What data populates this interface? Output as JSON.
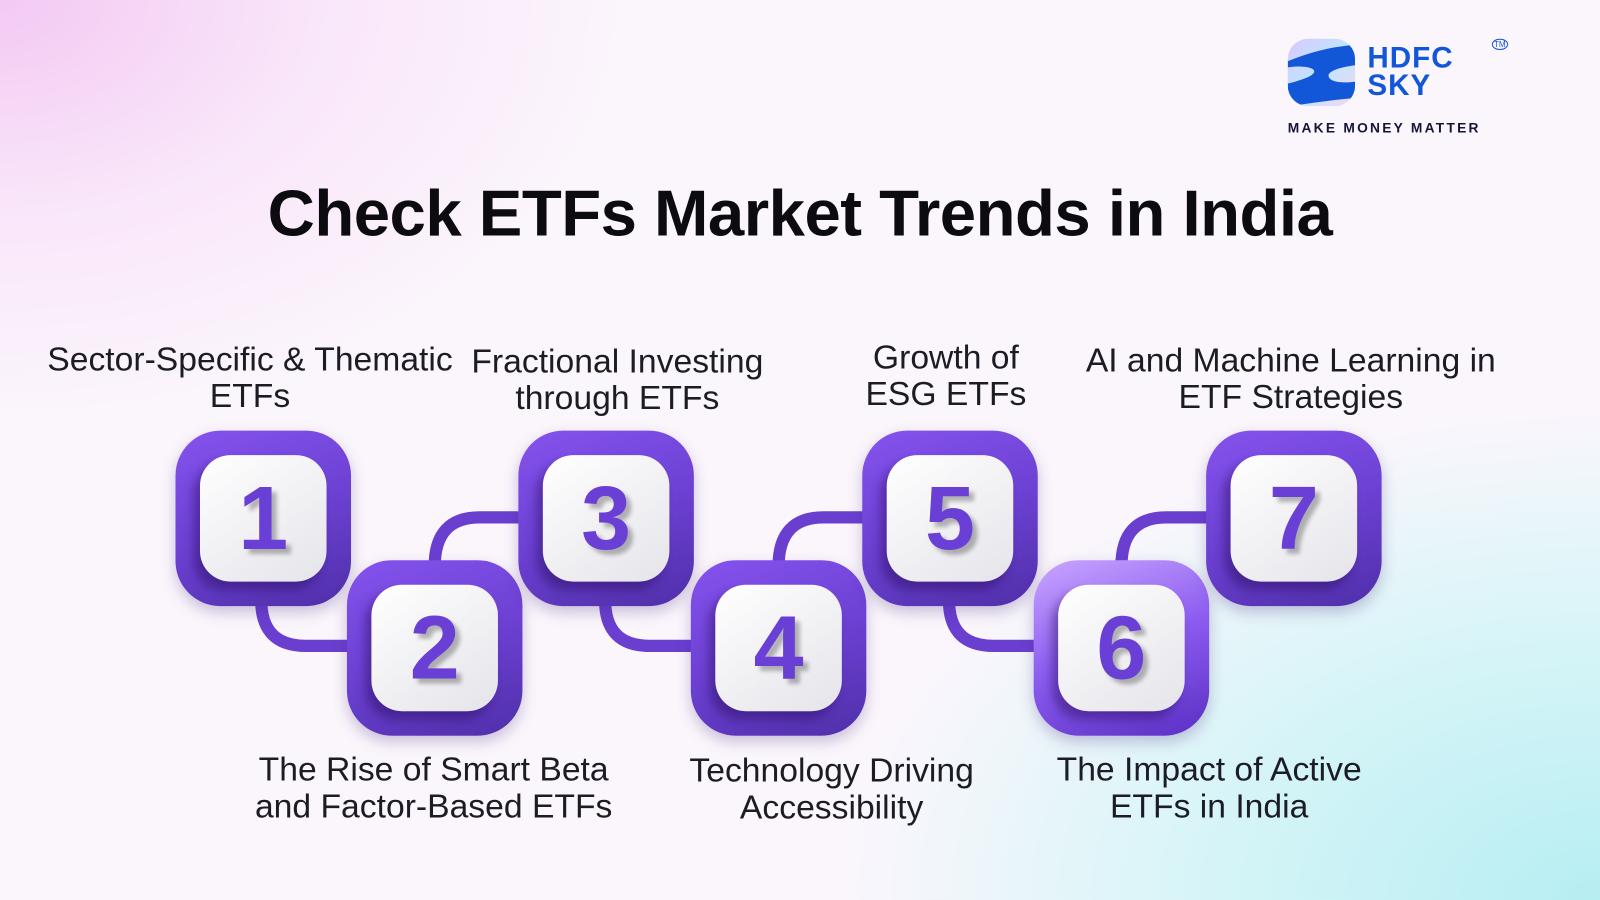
{
  "brand": {
    "name_line1": "HDFC",
    "name_line2": "SKY",
    "tagline": "MAKE MONEY MATTER",
    "trademark": "TM",
    "color": "#1257d8"
  },
  "title": "Check ETFs Market Trends in India",
  "accent_color": "#6a3fd6",
  "steps": [
    {
      "number": "1",
      "label": "Sector-Specific & Thematic ETFs"
    },
    {
      "number": "2",
      "label": "The Rise of Smart Beta and Factor-Based ETFs"
    },
    {
      "number": "3",
      "label": "Fractional Investing through ETFs"
    },
    {
      "number": "4",
      "label": "Technology Driving Accessibility"
    },
    {
      "number": "5",
      "label": "Growth of ESG ETFs"
    },
    {
      "number": "6",
      "label": "The Impact of Active ETFs in India"
    },
    {
      "number": "7",
      "label": "AI and Machine Learning in ETF Strategies"
    }
  ]
}
